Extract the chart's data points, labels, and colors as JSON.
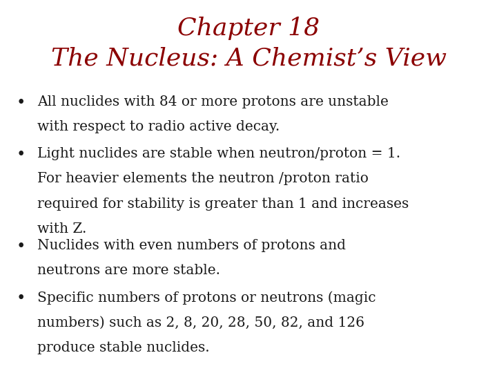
{
  "title_line1": "Chapter 18",
  "title_line2": "The Nucleus: A Chemist’s View",
  "title_color": "#8B0000",
  "background_color": "#FFFFFF",
  "bullet_color": "#1a1a1a",
  "bullet_points_lines": [
    [
      "All nuclides with 84 or more protons are unstable",
      "with respect to radio active decay."
    ],
    [
      "Light nuclides are stable when neutron/proton = 1.",
      "For heavier elements the neutron /proton ratio",
      "required for stability is greater than 1 and increases",
      "with Z."
    ],
    [
      "Nuclides with even numbers of protons and",
      "neutrons are more stable."
    ],
    [
      "Specific numbers of protons or neutrons (magic",
      "numbers) such as 2, 8, 20, 28, 50, 82, and 126",
      "produce stable nuclides."
    ]
  ],
  "title_fontsize": 26,
  "bullet_fontsize": 14.5,
  "figsize": [
    7.2,
    5.4
  ],
  "dpi": 100
}
